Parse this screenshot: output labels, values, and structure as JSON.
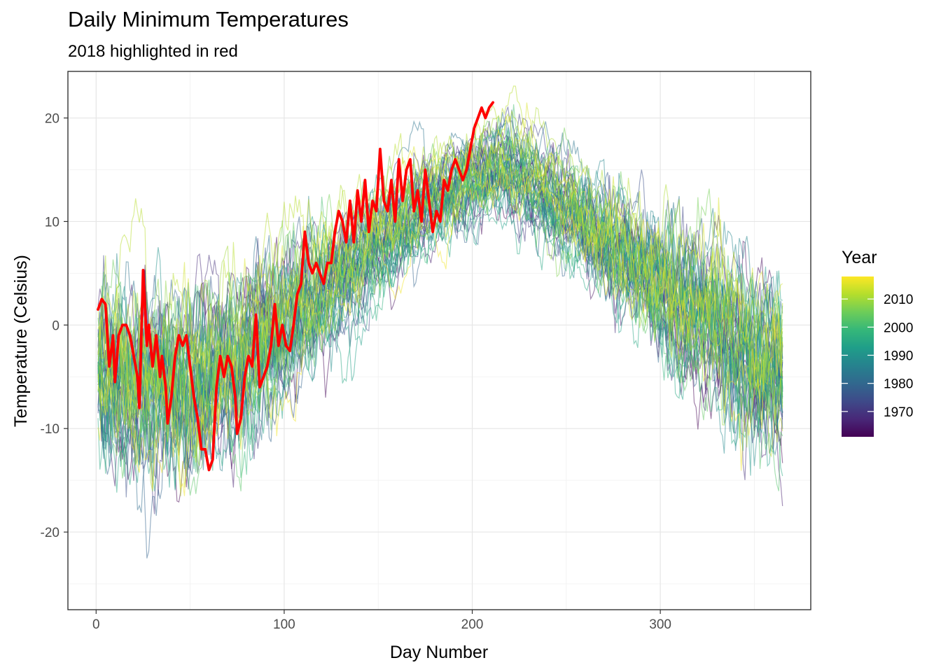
{
  "chart_data": {
    "type": "line",
    "title": "Daily Minimum Temperatures",
    "subtitle": "2018 highlighted in red",
    "xlabel": "Day Number",
    "ylabel": "Temperature (Celsius)",
    "xlim": [
      -15,
      380
    ],
    "ylim": [
      -27.5,
      24.5
    ],
    "x_ticks": [
      0,
      100,
      200,
      300
    ],
    "y_ticks": [
      -20,
      -10,
      0,
      10,
      20
    ],
    "grid": true,
    "legend": {
      "title": "Year",
      "position": "right",
      "type": "colorbar",
      "range": [
        1961,
        2018
      ],
      "ticks": [
        1970,
        1980,
        1990,
        2000,
        2010
      ],
      "colors": [
        "#440154",
        "#482878",
        "#3E4A89",
        "#31688E",
        "#26828E",
        "#1F9E89",
        "#35B779",
        "#6DCD59",
        "#B4DE2C",
        "#FDE725"
      ]
    },
    "background_series": {
      "years": [
        1961,
        2017
      ],
      "days": [
        1,
        365
      ],
      "opacity": 0.5,
      "seasonal_mean": [
        [
          1,
          -5
        ],
        [
          20,
          -6
        ],
        [
          40,
          -6.5
        ],
        [
          60,
          -6
        ],
        [
          80,
          -3
        ],
        [
          100,
          0
        ],
        [
          120,
          3
        ],
        [
          140,
          6
        ],
        [
          160,
          9
        ],
        [
          180,
          12
        ],
        [
          200,
          14
        ],
        [
          215,
          15
        ],
        [
          230,
          14
        ],
        [
          250,
          11
        ],
        [
          270,
          8
        ],
        [
          290,
          5
        ],
        [
          310,
          2
        ],
        [
          330,
          0
        ],
        [
          350,
          -3
        ],
        [
          365,
          -5
        ]
      ]
    },
    "highlight": {
      "year": 2018,
      "color": "#FF0000",
      "points": [
        [
          1,
          1.5
        ],
        [
          3,
          2.5
        ],
        [
          5,
          2
        ],
        [
          7,
          -4
        ],
        [
          9,
          -1
        ],
        [
          10,
          -5.5
        ],
        [
          12,
          -1
        ],
        [
          14,
          0
        ],
        [
          16,
          0
        ],
        [
          18,
          -1
        ],
        [
          20,
          -3
        ],
        [
          22,
          -5
        ],
        [
          23,
          -8
        ],
        [
          25,
          5.3
        ],
        [
          27,
          -2
        ],
        [
          28,
          0
        ],
        [
          30,
          -4
        ],
        [
          32,
          -1
        ],
        [
          34,
          -5
        ],
        [
          35,
          -3
        ],
        [
          37,
          -6
        ],
        [
          38,
          -9.5
        ],
        [
          40,
          -7
        ],
        [
          42,
          -3
        ],
        [
          44,
          -1
        ],
        [
          46,
          -2
        ],
        [
          48,
          -1
        ],
        [
          50,
          -4
        ],
        [
          52,
          -7
        ],
        [
          54,
          -9
        ],
        [
          56,
          -12
        ],
        [
          58,
          -12
        ],
        [
          60,
          -14
        ],
        [
          62,
          -13
        ],
        [
          64,
          -6
        ],
        [
          66,
          -3
        ],
        [
          68,
          -5
        ],
        [
          70,
          -3
        ],
        [
          72,
          -4
        ],
        [
          74,
          -7
        ],
        [
          75,
          -10.5
        ],
        [
          77,
          -9
        ],
        [
          79,
          -5
        ],
        [
          81,
          -3
        ],
        [
          83,
          -4
        ],
        [
          85,
          1
        ],
        [
          87,
          -6
        ],
        [
          89,
          -5
        ],
        [
          91,
          -4
        ],
        [
          93,
          -2
        ],
        [
          95,
          2
        ],
        [
          97,
          -2
        ],
        [
          99,
          0
        ],
        [
          101,
          -2
        ],
        [
          103,
          -2.5
        ],
        [
          105,
          0
        ],
        [
          107,
          3
        ],
        [
          109,
          4
        ],
        [
          111,
          9
        ],
        [
          113,
          6
        ],
        [
          115,
          5
        ],
        [
          117,
          6
        ],
        [
          119,
          5
        ],
        [
          121,
          4
        ],
        [
          123,
          6
        ],
        [
          125,
          6
        ],
        [
          127,
          9
        ],
        [
          129,
          11
        ],
        [
          131,
          10
        ],
        [
          133,
          8
        ],
        [
          135,
          12
        ],
        [
          137,
          8
        ],
        [
          139,
          13
        ],
        [
          141,
          10
        ],
        [
          143,
          14
        ],
        [
          145,
          9
        ],
        [
          147,
          12
        ],
        [
          149,
          11
        ],
        [
          151,
          17
        ],
        [
          153,
          12
        ],
        [
          155,
          11
        ],
        [
          157,
          14
        ],
        [
          159,
          10
        ],
        [
          161,
          16
        ],
        [
          163,
          12
        ],
        [
          165,
          15
        ],
        [
          167,
          16
        ],
        [
          169,
          11
        ],
        [
          171,
          13
        ],
        [
          173,
          10
        ],
        [
          175,
          15
        ],
        [
          177,
          12
        ],
        [
          179,
          9
        ],
        [
          181,
          11
        ],
        [
          183,
          10
        ],
        [
          185,
          14
        ],
        [
          187,
          13
        ],
        [
          189,
          15
        ],
        [
          191,
          16
        ],
        [
          193,
          15
        ],
        [
          195,
          14
        ],
        [
          197,
          15
        ],
        [
          199,
          17
        ],
        [
          201,
          19
        ],
        [
          203,
          20
        ],
        [
          205,
          21
        ],
        [
          207,
          20
        ],
        [
          209,
          21
        ],
        [
          211,
          21.5
        ]
      ]
    }
  }
}
